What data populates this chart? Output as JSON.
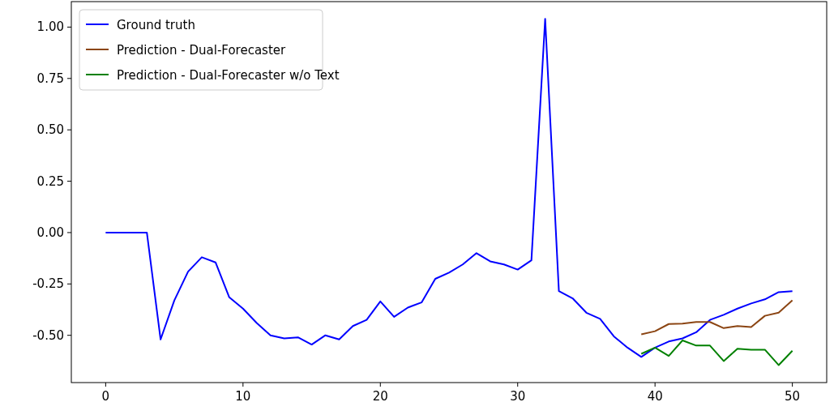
{
  "chart_data": {
    "type": "line",
    "x": [
      0,
      1,
      2,
      3,
      4,
      5,
      6,
      7,
      8,
      9,
      10,
      11,
      12,
      13,
      14,
      15,
      16,
      17,
      18,
      19,
      20,
      21,
      22,
      23,
      24,
      25,
      26,
      27,
      28,
      29,
      30,
      31,
      32,
      33,
      34,
      35,
      36,
      37,
      38,
      39,
      40,
      41,
      42,
      43,
      44,
      45,
      46,
      47,
      48,
      49,
      50
    ],
    "series": [
      {
        "name": "Ground truth",
        "color": "#0000ff",
        "values": [
          0,
          0,
          0,
          0,
          -0.52,
          -0.33,
          -0.19,
          -0.12,
          -0.145,
          -0.315,
          -0.37,
          -0.44,
          -0.5,
          -0.515,
          -0.51,
          -0.545,
          -0.5,
          -0.52,
          -0.455,
          -0.425,
          -0.335,
          -0.41,
          -0.365,
          -0.34,
          -0.225,
          -0.195,
          -0.155,
          -0.1,
          -0.14,
          -0.155,
          -0.18,
          -0.135,
          1.04,
          -0.285,
          -0.32,
          -0.39,
          -0.42,
          -0.505,
          -0.56,
          -0.605,
          -0.56,
          -0.53,
          -0.515,
          -0.485,
          -0.425,
          -0.4,
          -0.37,
          -0.345,
          -0.325,
          -0.29,
          -0.285
        ]
      },
      {
        "name": "Prediction - Dual-Forecaster",
        "color": "#8b4513",
        "x": [
          39,
          40,
          41,
          42,
          43,
          44,
          45,
          46,
          47,
          48,
          49,
          50
        ],
        "values": [
          -0.495,
          -0.48,
          -0.445,
          -0.443,
          -0.435,
          -0.435,
          -0.465,
          -0.455,
          -0.46,
          -0.405,
          -0.39,
          -0.33
        ]
      },
      {
        "name": "Prediction - Dual-Forecaster w/o Text",
        "color": "#008000",
        "x": [
          39,
          40,
          41,
          42,
          43,
          44,
          45,
          46,
          47,
          48,
          49,
          50
        ],
        "values": [
          -0.59,
          -0.56,
          -0.6,
          -0.525,
          -0.55,
          -0.55,
          -0.625,
          -0.565,
          -0.57,
          -0.57,
          -0.645,
          -0.575
        ]
      }
    ],
    "xlim": [
      -2.5,
      52.5
    ],
    "xticks": [
      0,
      10,
      20,
      30,
      40,
      50
    ],
    "ylim": [
      -0.73,
      1.124
    ],
    "yticks": [
      {
        "value": -0.5,
        "label": "-0.50"
      },
      {
        "value": -0.25,
        "label": "-0.25"
      },
      {
        "value": 0,
        "label": "0.00"
      },
      {
        "value": 0.25,
        "label": "0.25"
      },
      {
        "value": 0.5,
        "label": "0.50"
      },
      {
        "value": 0.75,
        "label": "0.75"
      },
      {
        "value": 1,
        "label": "1.00"
      }
    ],
    "legend": "top left",
    "grid": false
  }
}
